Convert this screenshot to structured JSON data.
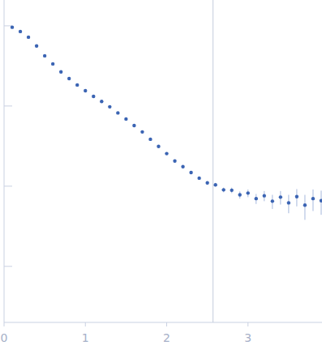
{
  "chart_data": {
    "type": "scatter",
    "log": "y",
    "tick_labels": "x",
    "grid": false,
    "xlim": [
      0,
      3.91
    ],
    "xticks": [
      0,
      1,
      2,
      3
    ],
    "ylim": [
      0.2,
      2100
    ],
    "yticks": [
      1,
      10,
      100,
      1000
    ],
    "vertical_line": 2.57,
    "series": [
      {
        "color": "#3b64b3",
        "marker": "circle",
        "x": [
          0.1,
          0.2,
          0.3,
          0.4,
          0.5,
          0.6,
          0.7,
          0.8,
          0.9,
          1.0,
          1.1,
          1.2,
          1.3,
          1.4,
          1.5,
          1.6,
          1.7,
          1.8,
          1.9,
          2.0,
          2.1,
          2.2,
          2.3,
          2.4,
          2.5,
          2.6,
          2.7,
          2.8,
          2.9,
          3.0,
          3.1,
          3.2,
          3.3,
          3.4,
          3.5,
          3.6,
          3.7,
          3.8,
          3.9
        ],
        "values": [
          960,
          850,
          722,
          560,
          423,
          335,
          266,
          220,
          183,
          155,
          132,
          114,
          97.7,
          82,
          68.9,
          57,
          47.5,
          38.5,
          31.3,
          25.5,
          20.6,
          17.5,
          14.8,
          12.6,
          11.0,
          10.4,
          9.0,
          8.9,
          7.8,
          8.2,
          7.0,
          7.6,
          6.5,
          7.3,
          6.2,
          7.4,
          5.8,
          7.0,
          6.6
        ],
        "errors": [
          5,
          4,
          4,
          3,
          3,
          2,
          2,
          2,
          1.5,
          1.5,
          1.2,
          1.1,
          1,
          0.9,
          0.8,
          0.7,
          0.6,
          0.6,
          0.5,
          0.5,
          0.5,
          0.5,
          0.5,
          0.5,
          0.5,
          0.6,
          0.6,
          0.7,
          0.8,
          0.9,
          1.0,
          1.1,
          1.3,
          1.4,
          1.6,
          1.8,
          2.0,
          2.1,
          2.2
        ]
      }
    ]
  }
}
